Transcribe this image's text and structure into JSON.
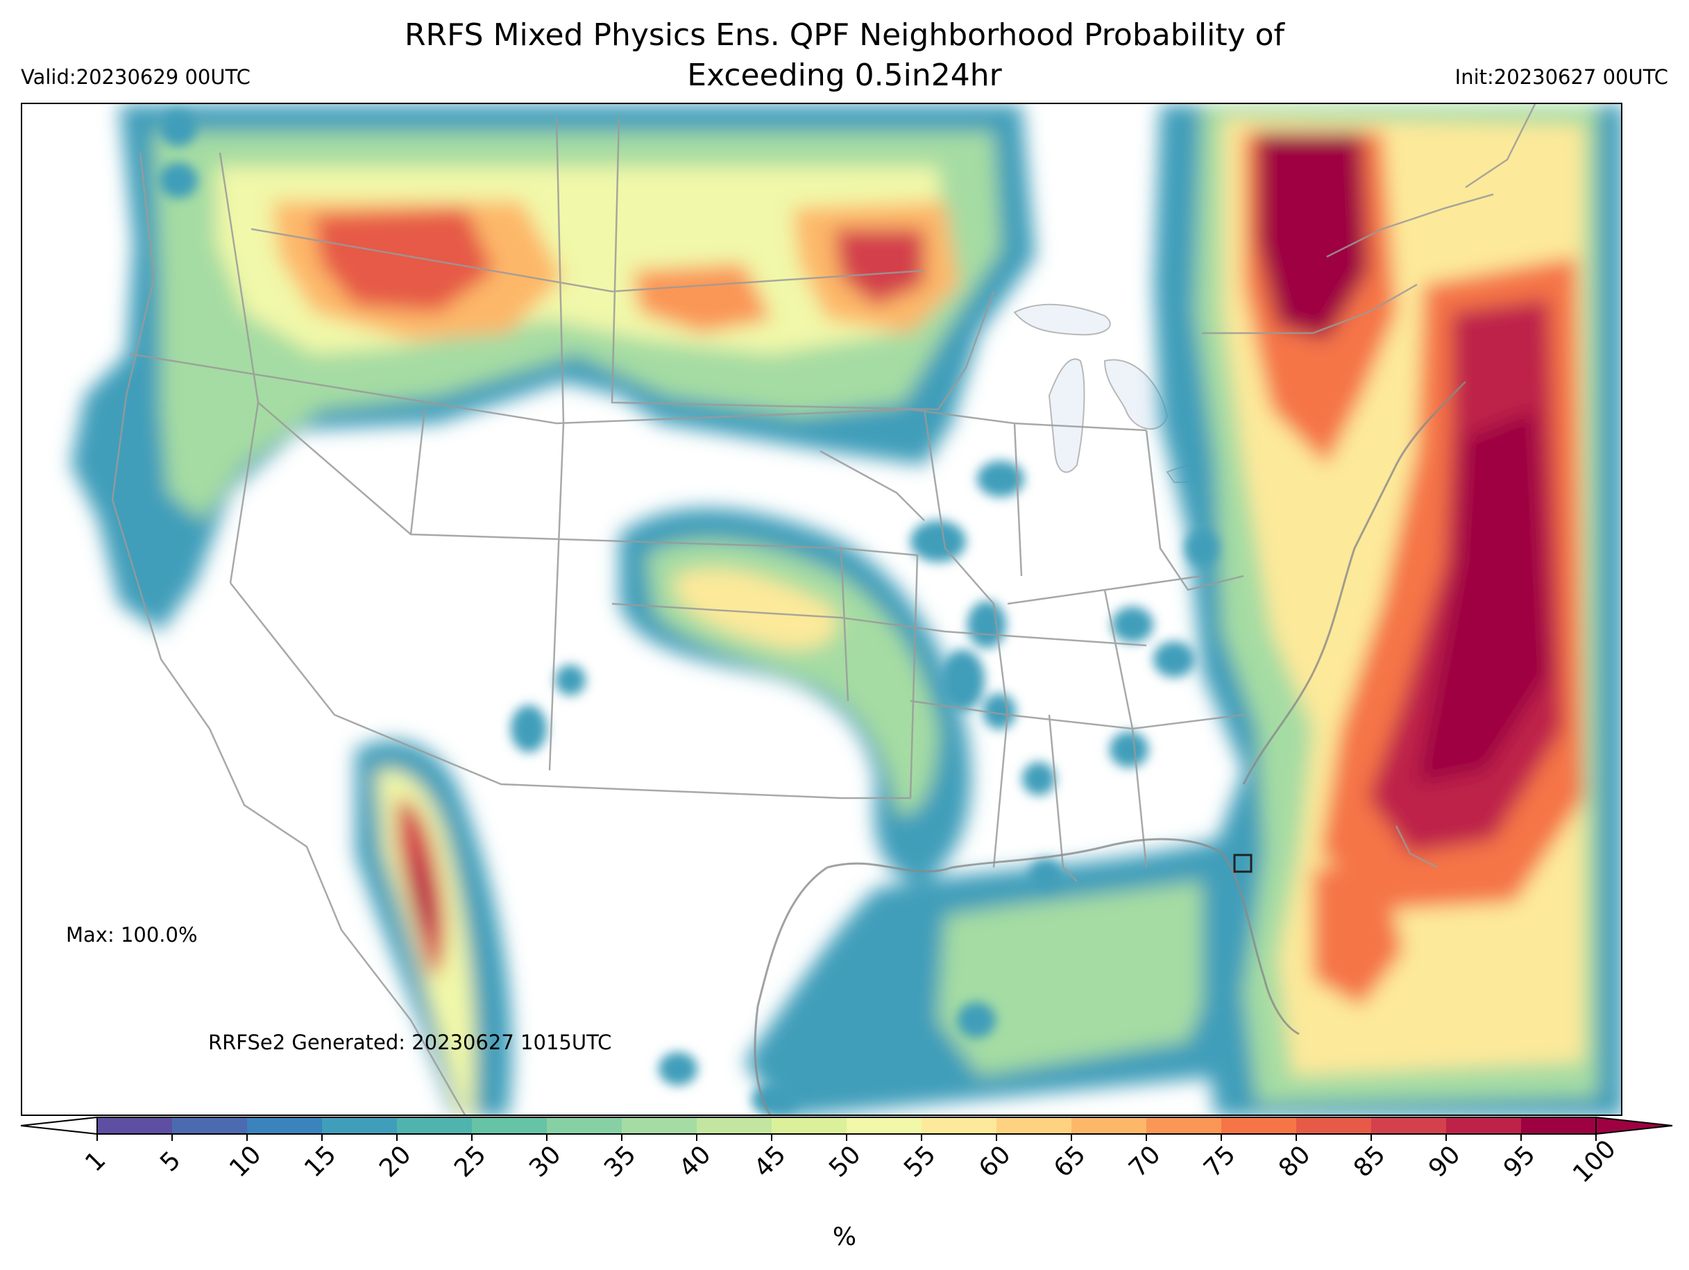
{
  "title_lines": [
    "RRFS Mixed Physics Ens. QPF Neighborhood Probability of",
    "Exceeding 0.5in24hr"
  ],
  "valid": "Valid:20230629 00UTC",
  "init": "Init:20230627 00UTC",
  "max_text": "Max: 100.0%",
  "generated_text": "RRFSe2 Generated: 20230627 1015UTC",
  "colorbar": {
    "unit": "%",
    "ticks": [
      "1",
      "5",
      "10",
      "15",
      "20",
      "25",
      "30",
      "35",
      "40",
      "45",
      "50",
      "55",
      "60",
      "65",
      "70",
      "75",
      "80",
      "85",
      "90",
      "95",
      "100"
    ],
    "colors": [
      "#5e4fa2",
      "#4c6ab0",
      "#3a83bd",
      "#3f9eba",
      "#4fb4ad",
      "#67c3a5",
      "#87d0a4",
      "#a5dca3",
      "#c2e69f",
      "#dcf09b",
      "#f1f8a9",
      "#fde99a",
      "#fed281",
      "#fdb769",
      "#fa9656",
      "#f57547",
      "#e65a47",
      "#d3414c",
      "#be2249",
      "#9e0142"
    ]
  },
  "map": {
    "region": "CONUS",
    "variable": "QPF neighborhood probability of exceeding 0.5 in / 24 hr",
    "highlighted_max_marker": "small square over central Florida"
  }
}
